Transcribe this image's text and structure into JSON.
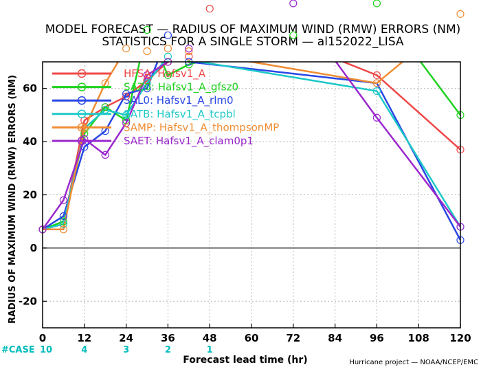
{
  "chart_data": {
    "type": "line",
    "title_line1": "MODEL FORECAST — RADIUS OF MAXIMUM WIND (RMW) ERRORS (NM)",
    "title_line2": "STATISTICS FOR A SINGLE STORM — al152022_LISA",
    "xlabel": "Forecast lead time (hr)",
    "ylabel": "RADIUS OF MAXIMUM WIND (RMW) ERRORS (NM)",
    "credit": "Hurricane project — NOAA/NCEP/EMC",
    "xlim": [
      0,
      120
    ],
    "ylim": [
      -30,
      70
    ],
    "x_ticks": [
      0,
      12,
      24,
      36,
      48,
      60,
      72,
      84,
      96,
      108,
      120
    ],
    "y_ticks": [
      -20,
      0,
      20,
      40,
      60
    ],
    "zero_line": true,
    "grid": true,
    "legend_position": "top-left",
    "case_label": "#CASE",
    "case_counts": [
      {
        "x": 0,
        "label": "10"
      },
      {
        "x": 12,
        "label": "4"
      },
      {
        "x": 24,
        "label": "3"
      },
      {
        "x": 36,
        "label": "2"
      },
      {
        "x": 48,
        "label": "1"
      }
    ],
    "series": [
      {
        "name": "HFSA: Hafsv1_A",
        "color": "#ef4848",
        "x": [
          0,
          6,
          12,
          18,
          24,
          30,
          36,
          42,
          48,
          96,
          120
        ],
        "y": [
          7,
          9,
          48,
          53,
          57,
          63,
          70,
          72,
          90,
          65,
          37
        ]
      },
      {
        "name": "SAZ0: Hafsv1_A_gfsz0",
        "color": "#1ed21e",
        "x": [
          0,
          6,
          12,
          18,
          24,
          30,
          36,
          42,
          72,
          96,
          120
        ],
        "y": [
          7,
          10,
          43,
          53,
          48,
          82,
          65,
          69,
          80,
          92,
          50
        ]
      },
      {
        "name": "SAL0: Hafsv1_A_rlm0",
        "color": "#2846e6",
        "x": [
          0,
          6,
          12,
          18,
          24,
          30,
          36,
          42,
          96,
          120
        ],
        "y": [
          7,
          12,
          38,
          44,
          58,
          60,
          80,
          70,
          62,
          3
        ]
      },
      {
        "name": "SATB: Hafsv1_A_tcpbl",
        "color": "#1ec8c8",
        "x": [
          0,
          6,
          12,
          18,
          24,
          30,
          36,
          96,
          120
        ],
        "y": [
          7,
          9,
          45,
          52,
          50,
          62,
          72,
          59,
          8
        ]
      },
      {
        "name": "SAMP: Hafsv1_A_thompsonMP",
        "color": "#f08c32",
        "x": [
          0,
          6,
          12,
          18,
          24,
          30,
          36,
          42,
          96,
          120
        ],
        "y": [
          7,
          7,
          45,
          62,
          75,
          74,
          75,
          74,
          62,
          88
        ]
      },
      {
        "name": "SAET: Hafsv1_A_clam0p1",
        "color": "#9b28cd",
        "x": [
          0,
          6,
          12,
          18,
          24,
          30,
          36,
          42,
          72,
          96,
          120
        ],
        "y": [
          7,
          18,
          41,
          35,
          47,
          65,
          70,
          75,
          92,
          49,
          8
        ]
      }
    ]
  }
}
